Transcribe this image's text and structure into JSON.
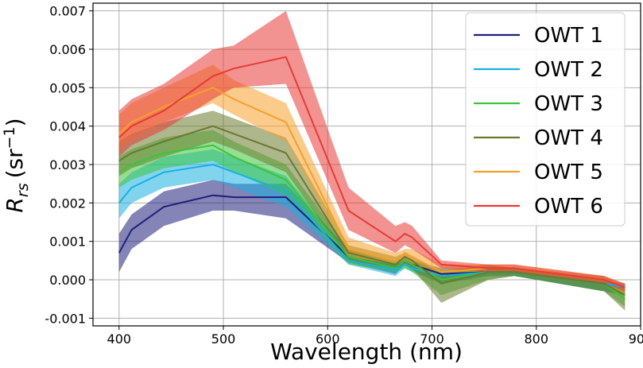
{
  "chart_data": {
    "type": "line",
    "title": "",
    "xlabel": "Wavelength (nm)",
    "ylabel_main": "R",
    "ylabel_sub": "rs",
    "ylabel_unit": "(sr",
    "ylabel_exp": "−1",
    "ylabel_close": ")",
    "xlim": [
      375,
      900
    ],
    "ylim": [
      -0.0012,
      0.0072
    ],
    "xticks": [
      400,
      500,
      600,
      700,
      800,
      900
    ],
    "xtick_labels": [
      "400",
      "500",
      "600",
      "700",
      "800",
      "900"
    ],
    "yticks": [
      -0.001,
      0.0,
      0.001,
      0.002,
      0.003,
      0.004,
      0.005,
      0.006,
      0.007
    ],
    "ytick_labels": [
      "-0.001",
      "0.000",
      "0.001",
      "0.002",
      "0.003",
      "0.004",
      "0.005",
      "0.006",
      "0.007"
    ],
    "grid": true,
    "legend_position": "top-right",
    "x": [
      400,
      412,
      443,
      490,
      510,
      560,
      620,
      665,
      674,
      681,
      709,
      754,
      779,
      865,
      885
    ],
    "series": [
      {
        "name": "OWT 1",
        "color": "#1f1f7a",
        "values": [
          0.0007,
          0.0013,
          0.0019,
          0.0022,
          0.00215,
          0.00215,
          0.0006,
          0.0003,
          0.0005,
          0.0004,
          0.00015,
          0.0002,
          0.0002,
          -0.0001,
          -0.0002
        ],
        "lower": [
          0.0002,
          0.0008,
          0.0014,
          0.0018,
          0.0018,
          0.0016,
          0.00045,
          0.00015,
          0.0004,
          0.00025,
          -0.0001,
          0.0001,
          0.0001,
          -0.0003,
          -0.0004
        ],
        "upper": [
          0.0012,
          0.0017,
          0.0023,
          0.0026,
          0.0025,
          0.0025,
          0.0008,
          0.0004,
          0.0006,
          0.0005,
          0.0003,
          0.0003,
          0.0003,
          0.0,
          -0.0001
        ]
      },
      {
        "name": "OWT 2",
        "color": "#1ab0e0",
        "values": [
          0.002,
          0.0024,
          0.0028,
          0.003,
          0.0028,
          0.0023,
          0.0005,
          0.00025,
          0.0004,
          0.0003,
          0.0001,
          0.0002,
          0.0002,
          -0.0001,
          -0.0002
        ],
        "lower": [
          0.0016,
          0.002,
          0.0024,
          0.0026,
          0.0024,
          0.0019,
          0.0004,
          0.0001,
          0.0003,
          0.0002,
          -0.0001,
          0.0001,
          0.0001,
          -0.0003,
          -0.0004
        ],
        "upper": [
          0.0025,
          0.0028,
          0.0032,
          0.0034,
          0.0032,
          0.0027,
          0.0007,
          0.0004,
          0.0005,
          0.0004,
          0.0003,
          0.0003,
          0.0003,
          0.0,
          -0.0001
        ]
      },
      {
        "name": "OWT 3",
        "color": "#3cc43c",
        "values": [
          0.0028,
          0.003,
          0.0033,
          0.0035,
          0.0032,
          0.0026,
          0.0006,
          0.0003,
          0.0005,
          0.0004,
          0.0,
          0.0002,
          0.0002,
          -0.0001,
          -0.0005
        ],
        "lower": [
          0.0024,
          0.0026,
          0.0029,
          0.0031,
          0.0028,
          0.0022,
          0.0004,
          0.0002,
          0.0003,
          0.0002,
          -0.0004,
          0.0,
          0.0001,
          -0.0003,
          -0.0007
        ],
        "upper": [
          0.0032,
          0.0034,
          0.0037,
          0.0039,
          0.0036,
          0.003,
          0.0008,
          0.0005,
          0.0006,
          0.0005,
          0.0002,
          0.0004,
          0.0003,
          0.0,
          -0.0003
        ]
      },
      {
        "name": "OWT 4",
        "color": "#6b7a2e",
        "values": [
          0.0031,
          0.0033,
          0.0036,
          0.004,
          0.0038,
          0.0033,
          0.0007,
          0.0004,
          0.0006,
          0.0005,
          -0.0001,
          0.0002,
          0.0002,
          -0.0001,
          -0.0004
        ],
        "lower": [
          0.0027,
          0.0029,
          0.0032,
          0.0036,
          0.0034,
          0.0028,
          0.0005,
          0.0003,
          0.0004,
          0.0003,
          -0.0006,
          0.0,
          0.0001,
          -0.0003,
          -0.0008
        ],
        "upper": [
          0.0036,
          0.0038,
          0.0041,
          0.0044,
          0.0042,
          0.0037,
          0.0009,
          0.0006,
          0.0007,
          0.0006,
          0.0002,
          0.0004,
          0.0003,
          0.0001,
          -0.0002
        ]
      },
      {
        "name": "OWT 5",
        "color": "#f5a02a",
        "values": [
          0.0038,
          0.0041,
          0.0045,
          0.005,
          0.0047,
          0.0041,
          0.0008,
          0.0005,
          0.0007,
          0.0006,
          0.0002,
          0.0003,
          0.0003,
          0.0,
          -0.0002
        ],
        "lower": [
          0.0034,
          0.0037,
          0.0041,
          0.0046,
          0.0043,
          0.0036,
          0.0006,
          0.0004,
          0.0005,
          0.0004,
          0.0001,
          0.0002,
          0.0002,
          -0.0001,
          -0.0004
        ],
        "upper": [
          0.0043,
          0.0046,
          0.005,
          0.0056,
          0.0052,
          0.0046,
          0.0011,
          0.0007,
          0.0008,
          0.0008,
          0.0004,
          0.0004,
          0.0004,
          0.0001,
          -0.0001
        ]
      },
      {
        "name": "OWT 6",
        "color": "#e83a36",
        "values": [
          0.0037,
          0.004,
          0.0044,
          0.0053,
          0.0055,
          0.0058,
          0.0018,
          0.001,
          0.0012,
          0.0011,
          0.0004,
          0.0003,
          0.0003,
          0.0,
          -0.0002
        ],
        "lower": [
          0.0032,
          0.0035,
          0.0039,
          0.0047,
          0.005,
          0.0051,
          0.0013,
          0.0007,
          0.0009,
          0.0008,
          0.0003,
          0.0002,
          0.0002,
          -0.0001,
          -0.0003
        ],
        "upper": [
          0.0044,
          0.0047,
          0.0051,
          0.006,
          0.0061,
          0.007,
          0.0024,
          0.0014,
          0.0015,
          0.0014,
          0.0005,
          0.0004,
          0.0004,
          0.0001,
          -0.0001
        ]
      }
    ]
  }
}
